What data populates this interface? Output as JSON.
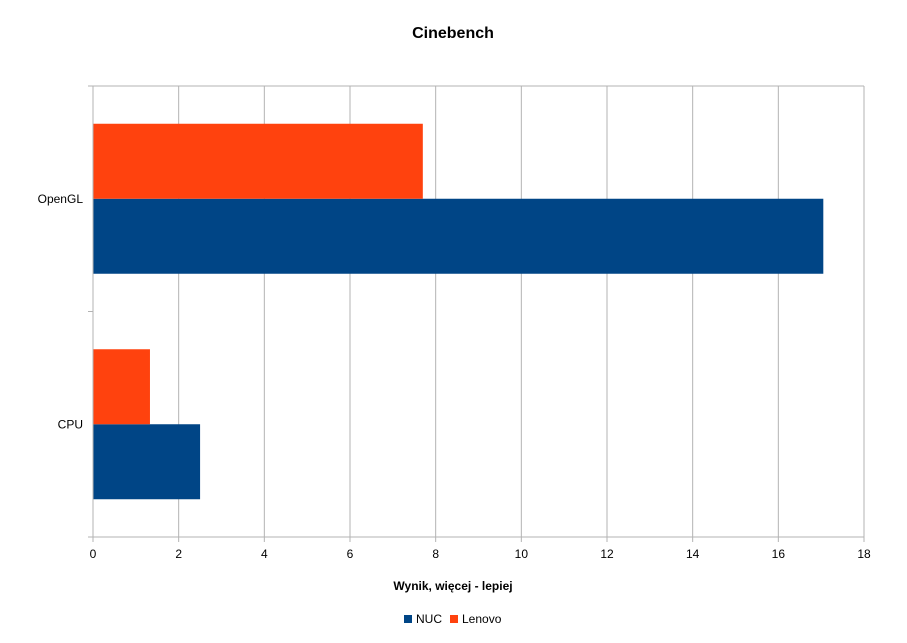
{
  "chart_data": {
    "type": "bar",
    "orientation": "horizontal",
    "title": "Cinebench",
    "xlabel": "Wynik, więcej - lepiej",
    "ylabel": "",
    "categories": [
      "OpenGL",
      "CPU"
    ],
    "series": [
      {
        "name": "NUC",
        "color": "#004586",
        "values": [
          17.05,
          2.5
        ]
      },
      {
        "name": "Lenovo",
        "color": "#ff420e",
        "values": [
          7.7,
          1.33
        ]
      }
    ],
    "xlim": [
      0,
      18
    ],
    "xticks": [
      "0",
      "2",
      "4",
      "6",
      "8",
      "10",
      "12",
      "14",
      "16",
      "18"
    ],
    "grid": true,
    "legend_position": "bottom"
  }
}
